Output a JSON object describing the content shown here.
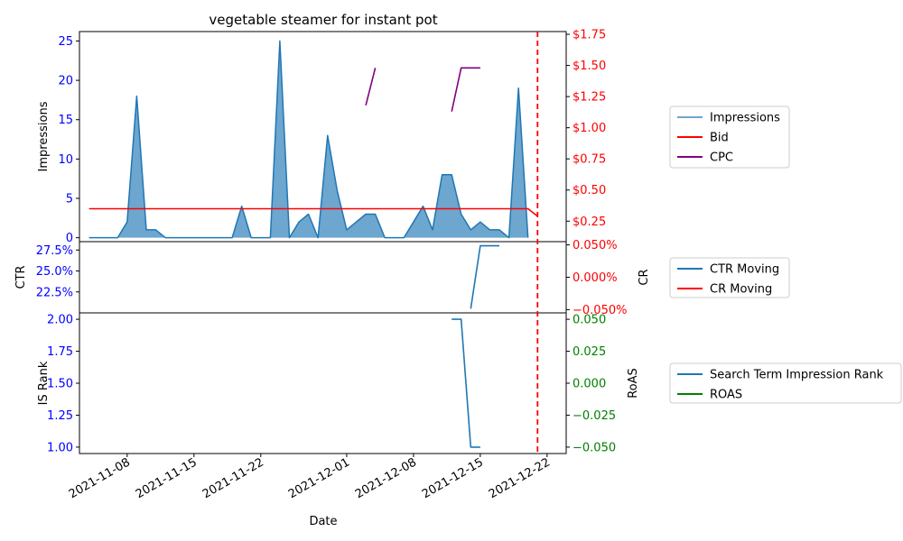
{
  "chart_data": {
    "type": "area",
    "title": "vegetable steamer for instant pot",
    "xlabel": "Date",
    "x_ticks": [
      "2021-11-08",
      "2021-11-15",
      "2021-11-22",
      "2021-12-01",
      "2021-12-08",
      "2021-12-15",
      "2021-12-22"
    ],
    "x_range": [
      "2021-11-03",
      "2021-12-24"
    ],
    "cutoff_date": "2021-12-21",
    "colors": {
      "impressions": "#1f77b4",
      "bid": "#ff0000",
      "cpc": "#800080",
      "ctr": "#1f77b4",
      "cr": "#ff0000",
      "rank": "#1f77b4",
      "roas": "#008000",
      "left_ticks": "#0000ff",
      "cutoff": "#ff0000"
    },
    "panels": [
      {
        "id": "top",
        "ylabel_left": "Impressions",
        "ylabel_right": "",
        "ylim_left": [
          -0.5,
          26.2
        ],
        "ylim_right": [
          0.0856,
          1.772
        ],
        "yticks_left": [
          {
            "v": 0,
            "label": "0"
          },
          {
            "v": 5,
            "label": "5"
          },
          {
            "v": 10,
            "label": "10"
          },
          {
            "v": 15,
            "label": "15"
          },
          {
            "v": 20,
            "label": "20"
          },
          {
            "v": 25,
            "label": "25"
          }
        ],
        "yticks_right": [
          {
            "v": 0.25,
            "label": "$0.25"
          },
          {
            "v": 0.5,
            "label": "$0.50"
          },
          {
            "v": 0.75,
            "label": "$0.75"
          },
          {
            "v": 1.0,
            "label": "$1.00"
          },
          {
            "v": 1.25,
            "label": "$1.25"
          },
          {
            "v": 1.5,
            "label": "$1.50"
          },
          {
            "v": 1.75,
            "label": "$1.75"
          }
        ],
        "legend": [
          {
            "label": "Impressions",
            "key": "impressions"
          },
          {
            "label": "Bid",
            "key": "bid"
          },
          {
            "label": "CPC",
            "key": "cpc"
          }
        ]
      },
      {
        "id": "mid",
        "ylabel_left": "CTR",
        "ylabel_right": "CR",
        "ylim_left": [
          0.2,
          0.285
        ],
        "ylim_right": [
          -0.055,
          0.055
        ],
        "yticks_left": [
          {
            "v": 0.225,
            "label": "22.5%"
          },
          {
            "v": 0.25,
            "label": "25.0%"
          },
          {
            "v": 0.275,
            "label": "27.5%"
          }
        ],
        "yticks_right": [
          {
            "v": -0.05,
            "label": "−0.050%"
          },
          {
            "v": 0.0,
            "label": "0.000%"
          },
          {
            "v": 0.05,
            "label": "0.050%"
          }
        ],
        "legend": [
          {
            "label": "CTR Moving",
            "key": "ctr"
          },
          {
            "label": "CR Moving",
            "key": "cr"
          }
        ]
      },
      {
        "id": "bot",
        "ylabel_left": "IS Rank",
        "ylabel_right": "RoAS",
        "ylim_left": [
          0.95,
          2.05
        ],
        "ylim_right": [
          -0.055,
          0.055
        ],
        "yticks_left": [
          {
            "v": 1.0,
            "label": "1.00"
          },
          {
            "v": 1.25,
            "label": "1.25"
          },
          {
            "v": 1.5,
            "label": "1.50"
          },
          {
            "v": 1.75,
            "label": "1.75"
          },
          {
            "v": 2.0,
            "label": "2.00"
          }
        ],
        "yticks_right": [
          {
            "v": -0.05,
            "label": "−0.050"
          },
          {
            "v": -0.025,
            "label": "−0.025"
          },
          {
            "v": 0.0,
            "label": "0.000"
          },
          {
            "v": 0.025,
            "label": "0.025"
          },
          {
            "v": 0.05,
            "label": "0.050"
          }
        ],
        "legend": [
          {
            "label": "Search Term Impression Rank",
            "key": "rank"
          },
          {
            "label": "ROAS",
            "key": "roas"
          }
        ]
      }
    ],
    "series": {
      "impressions": [
        [
          "2021-11-04",
          0
        ],
        [
          "2021-11-05",
          0
        ],
        [
          "2021-11-06",
          0
        ],
        [
          "2021-11-07",
          0
        ],
        [
          "2021-11-08",
          2
        ],
        [
          "2021-11-09",
          18
        ],
        [
          "2021-11-10",
          1
        ],
        [
          "2021-11-11",
          1
        ],
        [
          "2021-11-12",
          0
        ],
        [
          "2021-11-13",
          0
        ],
        [
          "2021-11-14",
          0
        ],
        [
          "2021-11-15",
          0
        ],
        [
          "2021-11-16",
          0
        ],
        [
          "2021-11-17",
          0
        ],
        [
          "2021-11-18",
          0
        ],
        [
          "2021-11-19",
          0
        ],
        [
          "2021-11-20",
          4
        ],
        [
          "2021-11-21",
          0
        ],
        [
          "2021-11-22",
          0
        ],
        [
          "2021-11-23",
          0
        ],
        [
          "2021-11-24",
          25
        ],
        [
          "2021-11-25",
          0
        ],
        [
          "2021-11-26",
          2
        ],
        [
          "2021-11-27",
          3
        ],
        [
          "2021-11-28",
          0
        ],
        [
          "2021-11-29",
          13
        ],
        [
          "2021-11-30",
          6
        ],
        [
          "2021-12-01",
          1
        ],
        [
          "2021-12-02",
          2
        ],
        [
          "2021-12-03",
          3
        ],
        [
          "2021-12-04",
          3
        ],
        [
          "2021-12-05",
          0
        ],
        [
          "2021-12-06",
          0
        ],
        [
          "2021-12-07",
          0
        ],
        [
          "2021-12-08",
          2
        ],
        [
          "2021-12-09",
          4
        ],
        [
          "2021-12-10",
          1
        ],
        [
          "2021-12-11",
          8
        ],
        [
          "2021-12-12",
          8
        ],
        [
          "2021-12-13",
          3
        ],
        [
          "2021-12-14",
          1
        ],
        [
          "2021-12-15",
          2
        ],
        [
          "2021-12-16",
          1
        ],
        [
          "2021-12-17",
          1
        ],
        [
          "2021-12-18",
          0
        ],
        [
          "2021-12-19",
          19
        ],
        [
          "2021-12-20",
          0
        ]
      ],
      "bid": [
        [
          "2021-11-04",
          0.35
        ],
        [
          "2021-12-20",
          0.35
        ],
        [
          "2021-12-21",
          0.29
        ]
      ],
      "cpc": [
        [
          [
            "2021-12-03",
            1.18
          ],
          [
            "2021-12-04",
            1.48
          ]
        ],
        [
          [
            "2021-12-12",
            1.13
          ],
          [
            "2021-12-13",
            1.48
          ],
          [
            "2021-12-15",
            1.48
          ]
        ]
      ],
      "ctr": [
        [
          "2021-12-14",
          0.205
        ],
        [
          "2021-12-15",
          0.28
        ],
        [
          "2021-12-17",
          0.28
        ]
      ],
      "rank": [
        [
          "2021-12-12",
          2.0
        ],
        [
          "2021-12-13",
          2.0
        ],
        [
          "2021-12-14",
          1.0
        ],
        [
          "2021-12-15",
          1.0
        ]
      ]
    }
  }
}
